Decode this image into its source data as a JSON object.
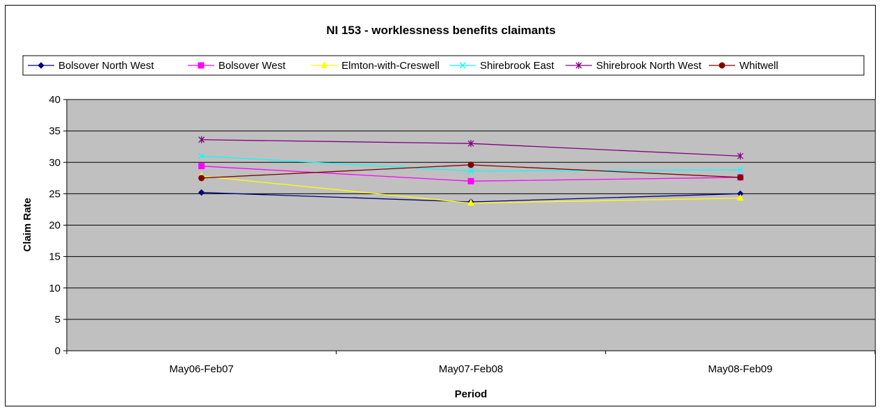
{
  "chart_data": {
    "type": "line",
    "title": "NI 153 - worklessness benefits claimants",
    "xlabel": "Period",
    "ylabel": "Claim Rate",
    "categories": [
      "May06-Feb07",
      "May07-Feb08",
      "May08-Feb09"
    ],
    "ylim": [
      0,
      40
    ],
    "yticks": [
      0,
      5,
      10,
      15,
      20,
      25,
      30,
      35,
      40
    ],
    "grid": true,
    "plot_background": "#C0C0C0",
    "legend_position": "top",
    "series": [
      {
        "name": "Bolsover North West",
        "values": [
          25.2,
          23.7,
          25.0
        ],
        "color": "#000080",
        "marker": "diamond"
      },
      {
        "name": "Bolsover West",
        "values": [
          29.4,
          27.0,
          27.6
        ],
        "color": "#FF00FF",
        "marker": "square"
      },
      {
        "name": "Elmton-with-Creswell",
        "values": [
          27.8,
          23.5,
          24.3
        ],
        "color": "#FFFF00",
        "marker": "triangle"
      },
      {
        "name": "Shirebrook East",
        "values": [
          31.0,
          28.6,
          28.8
        ],
        "color": "#00FFFF",
        "marker": "x"
      },
      {
        "name": "Shirebrook North West",
        "values": [
          33.6,
          33.0,
          31.0
        ],
        "color": "#800080",
        "marker": "star"
      },
      {
        "name": "Whitwell",
        "values": [
          27.5,
          29.6,
          27.6
        ],
        "color": "#800000",
        "marker": "circle"
      }
    ]
  }
}
